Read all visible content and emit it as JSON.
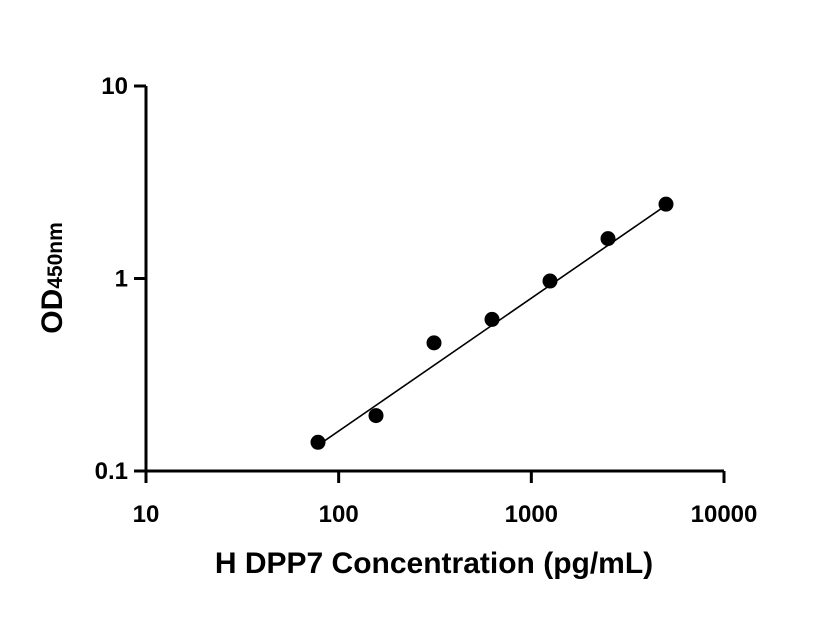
{
  "chart_data": {
    "type": "scatter",
    "x_scale": "log",
    "y_scale": "log",
    "xlim": [
      10,
      10000
    ],
    "ylim": [
      0.1,
      10
    ],
    "xticks": [
      "10",
      "100",
      "1000",
      "10000"
    ],
    "xtick_values": [
      10,
      100,
      1000,
      10000
    ],
    "yticks": [
      "0.1",
      "1",
      "10"
    ],
    "ytick_values": [
      0.1,
      1,
      10
    ],
    "xlabel": "H DPP7 Concentration (pg/mL)",
    "ylabel_main": "OD",
    "ylabel_sub": "450nm",
    "grid": false,
    "series": [
      {
        "points": [
          {
            "x": 78.125,
            "y": 0.141
          },
          {
            "x": 156.25,
            "y": 0.194
          },
          {
            "x": 312.5,
            "y": 0.463
          },
          {
            "x": 625,
            "y": 0.613
          },
          {
            "x": 1250,
            "y": 0.97
          },
          {
            "x": 2500,
            "y": 1.611
          },
          {
            "x": 5000,
            "y": 2.433
          }
        ],
        "fit_line": {
          "x": [
            78.125,
            5000
          ],
          "y": [
            0.136,
            2.4
          ]
        }
      }
    ]
  }
}
